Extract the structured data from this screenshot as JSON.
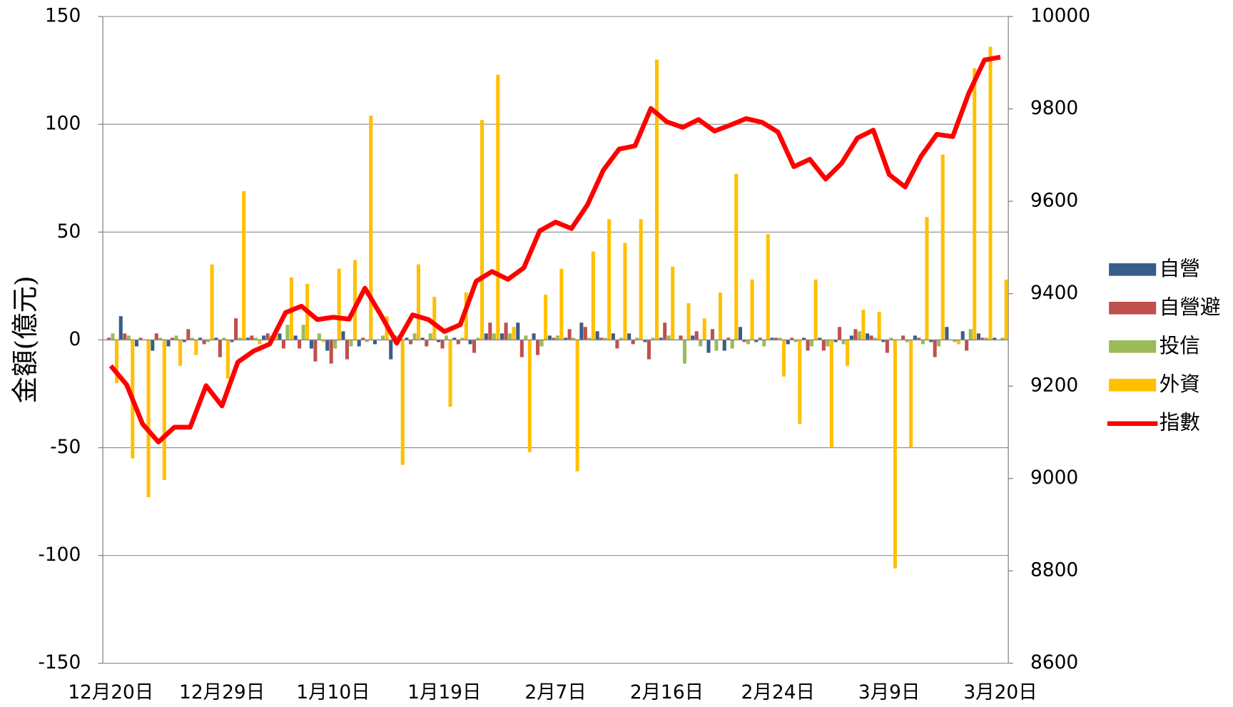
{
  "chart_data": {
    "type": "bar",
    "ylabel": "金額(億元)",
    "categories": [
      "12月20日",
      null,
      null,
      null,
      null,
      null,
      null,
      "12月29日",
      null,
      null,
      null,
      null,
      null,
      null,
      "1月10日",
      null,
      null,
      null,
      null,
      null,
      null,
      "1月19日",
      null,
      null,
      null,
      null,
      null,
      null,
      "2月7日",
      null,
      null,
      null,
      null,
      null,
      null,
      "2月16日",
      null,
      null,
      null,
      null,
      null,
      null,
      "2月24日",
      null,
      null,
      null,
      null,
      null,
      null,
      "3月9日",
      null,
      null,
      null,
      null,
      null,
      null,
      "3月20日"
    ],
    "ylim": [
      -150,
      150
    ],
    "yticks": [
      -150,
      -100,
      -50,
      0,
      50,
      100,
      150
    ],
    "y2lim": [
      8600,
      10000
    ],
    "y2ticks": [
      8600,
      8800,
      9000,
      9200,
      9400,
      9600,
      9800,
      10000
    ],
    "grid": true,
    "legend": "right",
    "series": [
      {
        "name": "自營",
        "color": "#385d8a",
        "values": [
          0,
          11,
          -3,
          -5,
          -3,
          -1,
          1,
          1,
          -1,
          1,
          2,
          3,
          2,
          -4,
          -5,
          4,
          -3,
          -2,
          -9,
          1,
          1,
          -1,
          1,
          -2,
          3,
          3,
          8,
          3,
          2,
          1,
          8,
          4,
          3,
          3,
          -1,
          1,
          0,
          2,
          -6,
          -5,
          6,
          -1,
          1,
          -2,
          1,
          1,
          -1,
          2,
          3,
          -1,
          0,
          2,
          -1,
          6,
          4,
          3,
          1
        ]
      },
      {
        "name": "自營避",
        "color": "#c0504d",
        "values": [
          1,
          3,
          1,
          3,
          1,
          5,
          -2,
          -8,
          10,
          2,
          3,
          -4,
          -4,
          -10,
          -11,
          -9,
          1,
          0,
          2,
          -2,
          -3,
          -4,
          -2,
          -6,
          8,
          8,
          -8,
          -7,
          1,
          5,
          6,
          1,
          -4,
          -2,
          -9,
          8,
          2,
          4,
          5,
          1,
          -1,
          1,
          1,
          1,
          -5,
          -5,
          6,
          5,
          2,
          -6,
          2,
          1,
          -8,
          0,
          -5,
          1,
          0
        ]
      },
      {
        "name": "投信",
        "color": "#9bbb59",
        "values": [
          3,
          2,
          0,
          1,
          2,
          1,
          -1,
          1,
          1,
          1,
          2,
          7,
          7,
          3,
          -4,
          -3,
          -1,
          2,
          2,
          3,
          3,
          2,
          1,
          1,
          3,
          3,
          2,
          -3,
          2,
          1,
          1,
          1,
          1,
          1,
          1,
          2,
          -11,
          -3,
          -5,
          -4,
          -2,
          -3,
          1,
          -1,
          -3,
          -3,
          -2,
          4,
          1,
          1,
          -1,
          -2,
          -3,
          -1,
          5,
          1,
          1
        ]
      },
      {
        "name": "外資",
        "color": "#ffc000",
        "values": [
          -20,
          -55,
          -73,
          -65,
          -12,
          -7,
          35,
          -18,
          69,
          -2,
          2,
          29,
          26,
          -1,
          33,
          37,
          104,
          11,
          -58,
          35,
          20,
          -31,
          22,
          102,
          123,
          6,
          -52,
          21,
          33,
          -61,
          41,
          56,
          45,
          56,
          130,
          34,
          17,
          10,
          22,
          77,
          28,
          49,
          -17,
          -39,
          28,
          -50,
          -12,
          14,
          13,
          -106,
          -50,
          57,
          86,
          -2,
          126,
          136,
          28
        ]
      },
      {
        "name": "指數",
        "color": "#ff0000",
        "type": "line",
        "axis": "y2",
        "values": [
          9244,
          9203,
          9118,
          9079,
          9111,
          9111,
          9201,
          9157,
          9252,
          9276,
          9291,
          9359,
          9373,
          9344,
          9349,
          9345,
          9412,
          9354,
          9293,
          9354,
          9344,
          9318,
          9333,
          9427,
          9448,
          9431,
          9456,
          9536,
          9555,
          9541,
          9592,
          9667,
          9713,
          9720,
          9801,
          9772,
          9760,
          9777,
          9752,
          9765,
          9779,
          9771,
          9750,
          9675,
          9691,
          9648,
          9682,
          9737,
          9754,
          9658,
          9631,
          9697,
          9745,
          9740,
          9833,
          9906,
          9912
        ]
      }
    ]
  }
}
